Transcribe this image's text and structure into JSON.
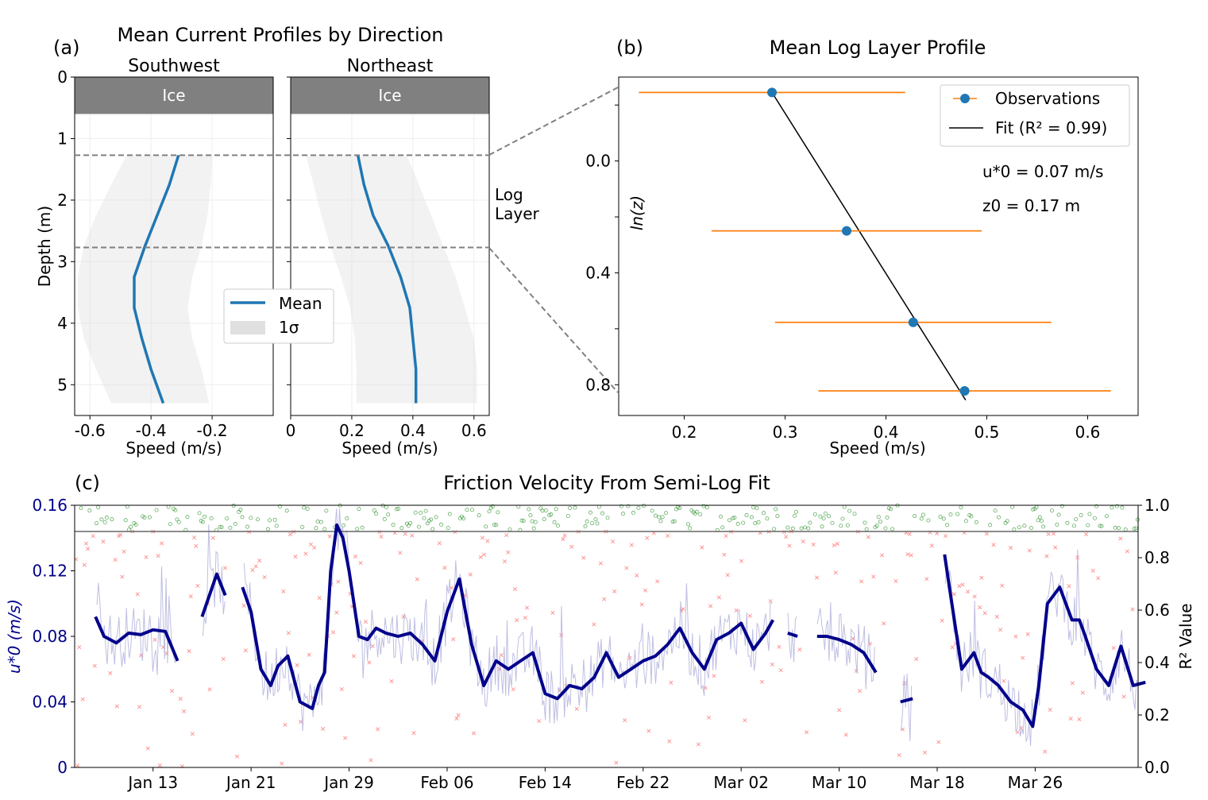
{
  "chart_data": [
    {
      "panel": "(a)",
      "type": "line",
      "title": "Mean Current Profiles by Direction",
      "ice_label": "Ice",
      "ice_depth": [
        0,
        0.6
      ],
      "log_layer_label": [
        "Log",
        "Layer"
      ],
      "log_layer_depths": [
        1.27,
        2.77
      ],
      "ylabel": "Depth (m)",
      "ylim": [
        0,
        5.5
      ],
      "yticks": [
        0,
        1,
        2,
        3,
        4,
        5
      ],
      "legend": {
        "position": "center",
        "entries": [
          "Mean",
          "1σ"
        ]
      },
      "subplots": [
        {
          "subtitle": "Southwest",
          "xlabel": "Speed (m/s)",
          "xlim": [
            -0.65,
            0
          ],
          "xticks": [
            -0.6,
            -0.4,
            -0.2
          ],
          "xtick_labels": [
            "-0.6",
            "-0.4",
            "-0.2"
          ],
          "depth": [
            1.27,
            1.75,
            2.25,
            2.75,
            3.25,
            3.75,
            4.25,
            4.75,
            5.3
          ],
          "mean": [
            -0.31,
            -0.34,
            -0.38,
            -0.42,
            -0.455,
            -0.455,
            -0.43,
            -0.4,
            -0.36
          ],
          "sigma_low": [
            -0.48,
            -0.53,
            -0.58,
            -0.62,
            -0.64,
            -0.64,
            -0.62,
            -0.58,
            -0.53
          ],
          "sigma_high": [
            -0.2,
            -0.205,
            -0.215,
            -0.235,
            -0.265,
            -0.28,
            -0.265,
            -0.235,
            -0.21
          ]
        },
        {
          "subtitle": "Northeast",
          "xlabel": "Speed (m/s)",
          "xlim": [
            0,
            0.65
          ],
          "xticks": [
            0,
            0.2,
            0.4,
            0.6
          ],
          "xtick_labels": [
            "0",
            "0.2",
            "0.4",
            "0.6"
          ],
          "depth": [
            1.27,
            1.75,
            2.25,
            2.75,
            3.25,
            3.75,
            4.25,
            4.75,
            5.3
          ],
          "mean": [
            0.22,
            0.24,
            0.27,
            0.32,
            0.36,
            0.39,
            0.4,
            0.41,
            0.41
          ],
          "sigma_low": [
            0.05,
            0.075,
            0.1,
            0.13,
            0.165,
            0.195,
            0.21,
            0.215,
            0.215
          ],
          "sigma_high": [
            0.38,
            0.42,
            0.46,
            0.5,
            0.54,
            0.57,
            0.6,
            0.61,
            0.61
          ]
        }
      ]
    },
    {
      "panel": "(b)",
      "type": "scatter",
      "title": "Mean Log Layer Profile",
      "xlabel": "Speed (m/s)",
      "ylabel": "ln(z)",
      "xlim": [
        0.135,
        0.65
      ],
      "ylim": [
        0.91,
        -0.3
      ],
      "xticks": [
        0.2,
        0.3,
        0.4,
        0.5,
        0.6
      ],
      "yticks": [
        0.0,
        0.4,
        0.8
      ],
      "legend": {
        "position": "top-right",
        "entries": [
          "Observations",
          "Fit (R² = 0.99)"
        ]
      },
      "annotations": [
        "u*0 = 0.07 m/s",
        "z0 = 0.17 m"
      ],
      "points": [
        {
          "x": 0.287,
          "y": -0.245,
          "err": 0.132
        },
        {
          "x": 0.361,
          "y": 0.25,
          "err": 0.134
        },
        {
          "x": 0.427,
          "y": 0.577,
          "err": 0.137
        },
        {
          "x": 0.478,
          "y": 0.822,
          "err": 0.145
        }
      ],
      "fit_line": {
        "x": [
          0.287,
          0.479
        ],
        "y": [
          -0.245,
          0.855
        ]
      }
    },
    {
      "panel": "(c)",
      "type": "line",
      "title": "Friction Velocity From Semi-Log Fit",
      "ylabel_left": "u*0  (m/s)",
      "ylabel_right": "R² Value",
      "ylim_left": [
        0,
        0.16
      ],
      "ylim_right": [
        0,
        1.0
      ],
      "yticks_left": [
        "0",
        "0.04",
        "0.08",
        "0.12",
        "0.16"
      ],
      "yticks_right": [
        "0.0",
        "0.2",
        "0.4",
        "0.6",
        "0.8",
        "1.0"
      ],
      "xticks": [
        "Jan 13",
        "Jan 21",
        "Jan 29",
        "Feb 06",
        "Feb 14",
        "Feb 22",
        "Mar 02",
        "Mar 10",
        "Mar 18",
        "Mar 26"
      ],
      "r2_threshold": 0.9,
      "colors": {
        "smoothed": "#00008b",
        "raw": "#b3b3dd",
        "good_fit": "#228b22",
        "bad_fit": "#ff4040"
      },
      "x_days": [
        8.3,
        9,
        10,
        11,
        12,
        13,
        14,
        15,
        16,
        17,
        18.2,
        18.9,
        19.6,
        20.3,
        21,
        21.8,
        22.6,
        23.2,
        24,
        25,
        26,
        26.5,
        27,
        27.5,
        28,
        28.5,
        29,
        29.8,
        30.5,
        31.2,
        32,
        33,
        34,
        35,
        36,
        37,
        38,
        39,
        40,
        41,
        42,
        43,
        44,
        45,
        46,
        47,
        48,
        49,
        50,
        51,
        52,
        53,
        54,
        55,
        56,
        57,
        58,
        59,
        60,
        61,
        62,
        63,
        63.6,
        64,
        64.8,
        65.6,
        66.4,
        67.2,
        68,
        69,
        70,
        71,
        72,
        73,
        74,
        75,
        76,
        77,
        77.6,
        78.2,
        79,
        80,
        80.6,
        81.2,
        82,
        83,
        84,
        84.8,
        85.3,
        86,
        87,
        88,
        88.6,
        89,
        90,
        91,
        92,
        93,
        94
      ],
      "u_star0": [
        0.092,
        0.08,
        0.076,
        0.082,
        0.081,
        0.084,
        0.083,
        0.065,
        null,
        0.092,
        0.118,
        0.105,
        null,
        0.11,
        0.095,
        0.06,
        0.05,
        0.062,
        0.068,
        0.04,
        0.036,
        0.05,
        0.058,
        0.12,
        0.148,
        0.14,
        0.12,
        0.08,
        0.078,
        0.085,
        0.082,
        0.08,
        0.082,
        0.075,
        0.065,
        0.095,
        0.115,
        0.075,
        0.05,
        0.065,
        0.06,
        0.065,
        0.07,
        0.045,
        0.042,
        0.05,
        0.048,
        0.055,
        0.07,
        0.055,
        0.06,
        0.065,
        0.068,
        0.075,
        0.085,
        0.07,
        0.06,
        0.078,
        0.082,
        0.088,
        0.072,
        0.082,
        0.09,
        null,
        0.082,
        0.08,
        null,
        0.08,
        0.08,
        0.078,
        0.075,
        0.07,
        0.058,
        null,
        0.04,
        0.042,
        null,
        null,
        0.13,
        0.1,
        0.06,
        0.07,
        0.058,
        0.055,
        0.05,
        0.04,
        0.035,
        0.025,
        0.05,
        0.1,
        0.11,
        0.09,
        0.09,
        0.082,
        0.06,
        0.05,
        0.074,
        0.05,
        0.052
      ],
      "date_range": [
        "Jan 08",
        "Apr 03"
      ]
    }
  ]
}
